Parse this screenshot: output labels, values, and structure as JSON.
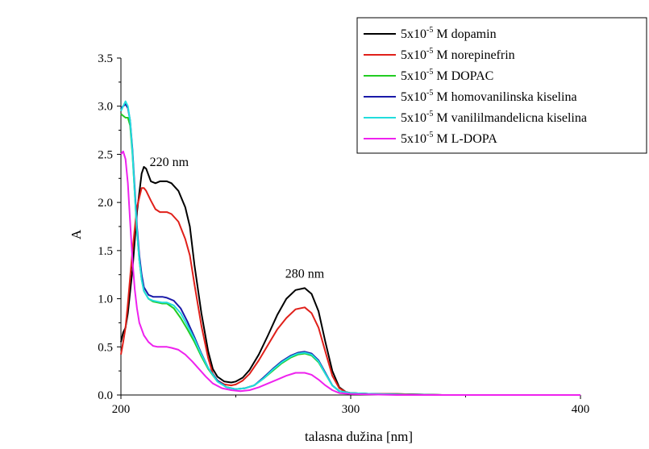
{
  "chart_data": {
    "type": "line",
    "xlabel": "talasna dužina [nm]",
    "ylabel": "A",
    "xlim": [
      200,
      400
    ],
    "ylim": [
      0,
      3.5
    ],
    "x_ticks": [
      200,
      300,
      400
    ],
    "x_tick_labels": [
      "200",
      "300",
      "400"
    ],
    "y_ticks": [
      0,
      0.5,
      1.0,
      1.5,
      2.0,
      2.5,
      3.0,
      3.5
    ],
    "y_tick_labels": [
      "0.0",
      "0.5",
      "1.0",
      "1.5",
      "2.0",
      "2.5",
      "3.0",
      "3.5"
    ],
    "grid": false,
    "legend_position": "top-right",
    "annotations": [
      {
        "text": "220 nm",
        "x": 221,
        "y": 2.38
      },
      {
        "text": "280 nm",
        "x": 280,
        "y": 1.22
      }
    ],
    "series": [
      {
        "label_prefix": "5x10",
        "label_exp": "-5",
        "label_rest": " M dopamin",
        "color": "#000000",
        "x": [
          200,
          201,
          202,
          203,
          205,
          207,
          209,
          210,
          211,
          213,
          215,
          217,
          220,
          222,
          225,
          228,
          230,
          232,
          235,
          238,
          240,
          242,
          245,
          248,
          250,
          253,
          256,
          260,
          264,
          268,
          272,
          276,
          280,
          283,
          286,
          289,
          292,
          295,
          298,
          300,
          305,
          310,
          320,
          330,
          340,
          350,
          360,
          380,
          400
        ],
        "y": [
          0.55,
          0.65,
          0.7,
          0.85,
          1.3,
          1.9,
          2.3,
          2.37,
          2.35,
          2.22,
          2.2,
          2.22,
          2.22,
          2.2,
          2.12,
          1.95,
          1.75,
          1.35,
          0.85,
          0.45,
          0.27,
          0.19,
          0.14,
          0.13,
          0.14,
          0.18,
          0.26,
          0.42,
          0.62,
          0.83,
          1.0,
          1.09,
          1.11,
          1.05,
          0.87,
          0.55,
          0.25,
          0.08,
          0.03,
          0.02,
          0.015,
          0.01,
          0.01,
          0.005,
          0.0,
          0.0,
          0.0,
          0.0,
          0.0
        ]
      },
      {
        "label_prefix": "5x10",
        "label_exp": "-5",
        "label_rest": " M norepinefrin",
        "color": "#e0201a",
        "x": [
          200,
          201,
          202,
          203,
          205,
          207,
          209,
          210,
          211,
          213,
          215,
          217,
          220,
          222,
          225,
          228,
          230,
          232,
          235,
          238,
          240,
          242,
          245,
          248,
          250,
          253,
          256,
          260,
          264,
          268,
          272,
          276,
          280,
          283,
          286,
          289,
          292,
          295,
          298,
          300,
          305,
          310,
          320,
          330,
          340,
          350,
          360,
          380,
          400
        ],
        "y": [
          0.42,
          0.55,
          0.7,
          0.95,
          1.5,
          1.95,
          2.15,
          2.15,
          2.12,
          2.02,
          1.93,
          1.9,
          1.9,
          1.88,
          1.8,
          1.62,
          1.45,
          1.15,
          0.72,
          0.38,
          0.22,
          0.15,
          0.11,
          0.1,
          0.11,
          0.15,
          0.22,
          0.36,
          0.52,
          0.68,
          0.8,
          0.89,
          0.91,
          0.85,
          0.7,
          0.45,
          0.2,
          0.07,
          0.03,
          0.02,
          0.015,
          0.01,
          0.01,
          0.005,
          0.0,
          0.0,
          0.0,
          0.0,
          0.0
        ]
      },
      {
        "label_prefix": "5x10",
        "label_exp": "-5",
        "label_rest": " M DOPAC",
        "color": "#22cc22",
        "x": [
          200,
          201,
          202,
          203,
          204,
          205,
          206,
          207,
          208,
          209,
          210,
          212,
          214,
          216,
          218,
          220,
          223,
          226,
          229,
          232,
          235,
          238,
          242,
          246,
          250,
          254,
          258,
          262,
          266,
          270,
          274,
          277,
          280,
          283,
          286,
          289,
          292,
          295,
          300,
          310,
          320,
          340,
          360,
          380,
          400
        ],
        "y": [
          2.92,
          2.9,
          2.88,
          2.88,
          2.8,
          2.5,
          2.1,
          1.7,
          1.4,
          1.2,
          1.08,
          1.0,
          0.97,
          0.96,
          0.95,
          0.95,
          0.9,
          0.8,
          0.68,
          0.55,
          0.4,
          0.27,
          0.14,
          0.08,
          0.06,
          0.07,
          0.1,
          0.17,
          0.25,
          0.33,
          0.39,
          0.42,
          0.43,
          0.41,
          0.34,
          0.22,
          0.1,
          0.04,
          0.02,
          0.01,
          0.005,
          0.0,
          0.0,
          0.0,
          0.0
        ]
      },
      {
        "label_prefix": "5x10",
        "label_exp": "-5",
        "label_rest": " M homovanilinska kiselina",
        "color": "#1a1aa8",
        "x": [
          200,
          201,
          202,
          203,
          204,
          205,
          206,
          207,
          208,
          209,
          210,
          212,
          214,
          216,
          218,
          220,
          223,
          226,
          229,
          232,
          235,
          238,
          242,
          246,
          250,
          254,
          258,
          262,
          266,
          270,
          274,
          277,
          280,
          283,
          286,
          289,
          292,
          295,
          300,
          310,
          320,
          340,
          360,
          380,
          400
        ],
        "y": [
          2.98,
          3.0,
          3.02,
          2.98,
          2.85,
          2.55,
          2.15,
          1.75,
          1.45,
          1.25,
          1.12,
          1.04,
          1.02,
          1.02,
          1.02,
          1.01,
          0.98,
          0.9,
          0.76,
          0.6,
          0.43,
          0.28,
          0.15,
          0.08,
          0.06,
          0.07,
          0.1,
          0.18,
          0.27,
          0.35,
          0.41,
          0.44,
          0.45,
          0.43,
          0.36,
          0.23,
          0.1,
          0.04,
          0.02,
          0.01,
          0.005,
          0.0,
          0.0,
          0.0,
          0.0
        ]
      },
      {
        "label_prefix": "5x10",
        "label_exp": "-5",
        "label_rest": " M vanililmandelicna kiselina",
        "color": "#22dddd",
        "x": [
          200,
          201,
          202,
          203,
          204,
          205,
          206,
          207,
          208,
          209,
          210,
          212,
          214,
          216,
          218,
          220,
          223,
          226,
          229,
          232,
          235,
          238,
          242,
          246,
          250,
          254,
          258,
          262,
          266,
          270,
          274,
          277,
          280,
          283,
          286,
          289,
          292,
          295,
          300,
          310,
          320,
          340,
          360,
          380,
          400
        ],
        "y": [
          2.95,
          3.0,
          3.05,
          3.0,
          2.85,
          2.52,
          2.1,
          1.7,
          1.4,
          1.2,
          1.08,
          1.0,
          0.98,
          0.97,
          0.96,
          0.96,
          0.93,
          0.85,
          0.72,
          0.58,
          0.42,
          0.28,
          0.14,
          0.08,
          0.06,
          0.07,
          0.1,
          0.17,
          0.26,
          0.34,
          0.4,
          0.43,
          0.44,
          0.42,
          0.35,
          0.22,
          0.1,
          0.04,
          0.02,
          0.01,
          0.005,
          0.0,
          0.0,
          0.0,
          0.0
        ]
      },
      {
        "label_prefix": "5x10",
        "label_exp": "-5",
        "label_rest": " M L-DOPA",
        "color": "#ee22ee",
        "x": [
          200,
          201,
          202,
          203,
          204,
          205,
          206,
          207,
          208,
          210,
          212,
          214,
          216,
          218,
          220,
          222,
          225,
          228,
          231,
          234,
          237,
          240,
          244,
          248,
          252,
          256,
          260,
          264,
          268,
          272,
          276,
          280,
          283,
          286,
          289,
          292,
          295,
          300,
          310,
          320,
          340,
          360,
          380,
          400
        ],
        "y": [
          2.5,
          2.53,
          2.45,
          2.2,
          1.8,
          1.4,
          1.1,
          0.9,
          0.75,
          0.62,
          0.55,
          0.51,
          0.5,
          0.5,
          0.5,
          0.49,
          0.47,
          0.42,
          0.35,
          0.27,
          0.19,
          0.12,
          0.07,
          0.05,
          0.04,
          0.05,
          0.08,
          0.12,
          0.16,
          0.2,
          0.23,
          0.23,
          0.21,
          0.16,
          0.1,
          0.05,
          0.02,
          0.01,
          0.005,
          0.0,
          0.0,
          0.0,
          0.0,
          0.0
        ]
      }
    ]
  }
}
